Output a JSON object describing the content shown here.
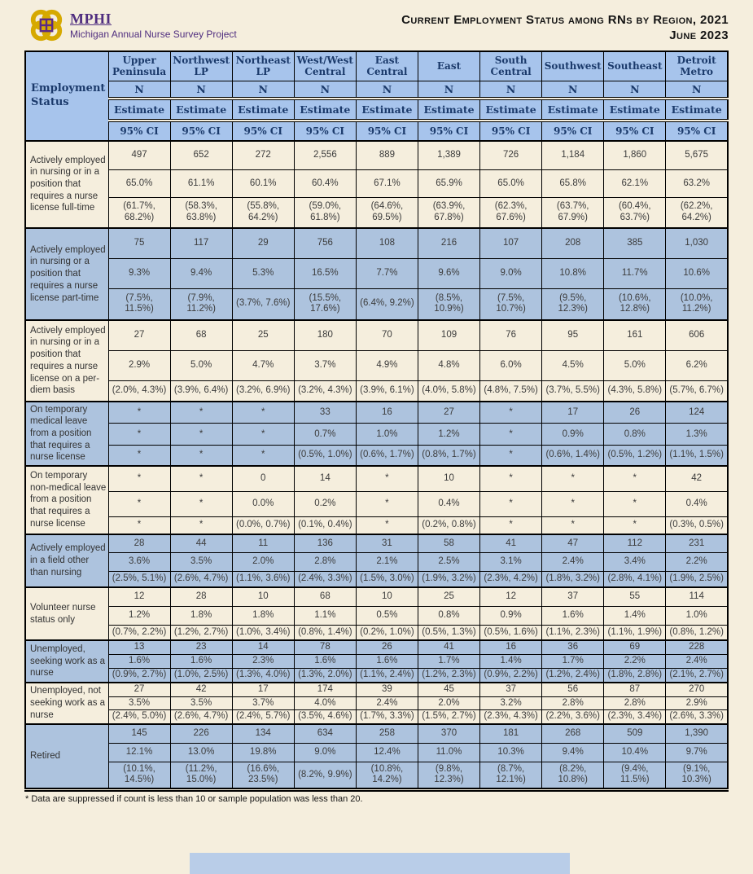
{
  "brand": {
    "name": "MPHI",
    "subtitle": "Michigan Annual Nurse Survey Project",
    "logo_icon": "mphi-knot-icon",
    "purple": "#4f2d7f",
    "gold": "#d6a900"
  },
  "title": {
    "line1": "Current Employment Status among RNs by Region, 2021",
    "line2": "June 2023"
  },
  "colors": {
    "page_background": "#f5eedd",
    "header_blue": "#a7c4ec",
    "row_blue": "#adc3de",
    "row_cream": "#f5eedd",
    "header_text_navy": "#1b3a6b"
  },
  "table": {
    "row_header_label": "Employment Status",
    "regions": [
      "Upper Peninsula",
      "Northwest LP",
      "Northeast LP",
      "West/West Central",
      "East Central",
      "East",
      "South Central",
      "Southwest",
      "Southeast",
      "Detroit Metro"
    ],
    "subheaders": [
      "N",
      "Estimate",
      "95% CI"
    ],
    "rows": [
      {
        "label": "Actively employed in nursing or in a position that requires a nurse license full-time",
        "shaded": false,
        "n": [
          "497",
          "652",
          "272",
          "2,556",
          "889",
          "1,389",
          "726",
          "1,184",
          "1,860",
          "5,675"
        ],
        "estimate": [
          "65.0%",
          "61.1%",
          "60.1%",
          "60.4%",
          "67.1%",
          "65.9%",
          "65.0%",
          "65.8%",
          "62.1%",
          "63.2%"
        ],
        "ci": [
          "(61.7%, 68.2%)",
          "(58.3%, 63.8%)",
          "(55.8%, 64.2%)",
          "(59.0%, 61.8%)",
          "(64.6%, 69.5%)",
          "(63.9%, 67.8%)",
          "(62.3%, 67.6%)",
          "(63.7%, 67.9%)",
          "(60.4%, 63.7%)",
          "(62.2%, 64.2%)"
        ]
      },
      {
        "label": "Actively employed in nursing or a position that requires a nurse license part-time",
        "shaded": true,
        "n": [
          "75",
          "117",
          "29",
          "756",
          "108",
          "216",
          "107",
          "208",
          "385",
          "1,030"
        ],
        "estimate": [
          "9.3%",
          "9.4%",
          "5.3%",
          "16.5%",
          "7.7%",
          "9.6%",
          "9.0%",
          "10.8%",
          "11.7%",
          "10.6%"
        ],
        "ci": [
          "(7.5%, 11.5%)",
          "(7.9%, 11.2%)",
          "(3.7%, 7.6%)",
          "(15.5%, 17.6%)",
          "(6.4%, 9.2%)",
          "(8.5%, 10.9%)",
          "(7.5%, 10.7%)",
          "(9.5%, 12.3%)",
          "(10.6%, 12.8%)",
          "(10.0%, 11.2%)"
        ]
      },
      {
        "label": "Actively employed in nursing or in a position that requires a nurse license on a per-diem basis",
        "shaded": false,
        "n": [
          "27",
          "68",
          "25",
          "180",
          "70",
          "109",
          "76",
          "95",
          "161",
          "606"
        ],
        "estimate": [
          "2.9%",
          "5.0%",
          "4.7%",
          "3.7%",
          "4.9%",
          "4.8%",
          "6.0%",
          "4.5%",
          "5.0%",
          "6.2%"
        ],
        "ci": [
          "(2.0%, 4.3%)",
          "(3.9%, 6.4%)",
          "(3.2%, 6.9%)",
          "(3.2%, 4.3%)",
          "(3.9%, 6.1%)",
          "(4.0%, 5.8%)",
          "(4.8%, 7.5%)",
          "(3.7%, 5.5%)",
          "(4.3%, 5.8%)",
          "(5.7%, 6.7%)"
        ]
      },
      {
        "label": "On temporary medical leave from a position that requires a nurse license",
        "shaded": true,
        "n": [
          "*",
          "*",
          "*",
          "33",
          "16",
          "27",
          "*",
          "17",
          "26",
          "124"
        ],
        "estimate": [
          "*",
          "*",
          "*",
          "0.7%",
          "1.0%",
          "1.2%",
          "*",
          "0.9%",
          "0.8%",
          "1.3%"
        ],
        "ci": [
          "*",
          "*",
          "*",
          "(0.5%, 1.0%)",
          "(0.6%, 1.7%)",
          "(0.8%, 1.7%)",
          "*",
          "(0.6%, 1.4%)",
          "(0.5%, 1.2%)",
          "(1.1%, 1.5%)"
        ]
      },
      {
        "label": "On temporary non-medical leave from a position that requires a nurse license",
        "shaded": false,
        "n": [
          "*",
          "*",
          "0",
          "14",
          "*",
          "10",
          "*",
          "*",
          "*",
          "42"
        ],
        "estimate": [
          "*",
          "*",
          "0.0%",
          "0.2%",
          "*",
          "0.4%",
          "*",
          "*",
          "*",
          "0.4%"
        ],
        "ci": [
          "*",
          "*",
          "(0.0%, 0.7%)",
          "(0.1%, 0.4%)",
          "*",
          "(0.2%, 0.8%)",
          "*",
          "*",
          "*",
          "(0.3%, 0.5%)"
        ]
      },
      {
        "label": "Actively employed in a field other than nursing",
        "shaded": true,
        "n": [
          "28",
          "44",
          "11",
          "136",
          "31",
          "58",
          "41",
          "47",
          "112",
          "231"
        ],
        "estimate": [
          "3.6%",
          "3.5%",
          "2.0%",
          "2.8%",
          "2.1%",
          "2.5%",
          "3.1%",
          "2.4%",
          "3.4%",
          "2.2%"
        ],
        "ci": [
          "(2.5%, 5.1%)",
          "(2.6%, 4.7%)",
          "(1.1%, 3.6%)",
          "(2.4%, 3.3%)",
          "(1.5%, 3.0%)",
          "(1.9%, 3.2%)",
          "(2.3%, 4.2%)",
          "(1.8%, 3.2%)",
          "(2.8%, 4.1%)",
          "(1.9%, 2.5%)"
        ]
      },
      {
        "label": "Volunteer nurse status only",
        "shaded": false,
        "n": [
          "12",
          "28",
          "10",
          "68",
          "10",
          "25",
          "12",
          "37",
          "55",
          "114"
        ],
        "estimate": [
          "1.2%",
          "1.8%",
          "1.8%",
          "1.1%",
          "0.5%",
          "0.8%",
          "0.9%",
          "1.6%",
          "1.4%",
          "1.0%"
        ],
        "ci": [
          "(0.7%, 2.2%)",
          "(1.2%, 2.7%)",
          "(1.0%, 3.4%)",
          "(0.8%, 1.4%)",
          "(0.2%, 1.0%)",
          "(0.5%, 1.3%)",
          "(0.5%, 1.6%)",
          "(1.1%, 2.3%)",
          "(1.1%, 1.9%)",
          "(0.8%, 1.2%)"
        ]
      },
      {
        "label": "Unemployed, seeking work as a nurse",
        "shaded": true,
        "n": [
          "13",
          "23",
          "14",
          "78",
          "26",
          "41",
          "16",
          "36",
          "69",
          "228"
        ],
        "estimate": [
          "1.6%",
          "1.6%",
          "2.3%",
          "1.6%",
          "1.6%",
          "1.7%",
          "1.4%",
          "1.7%",
          "2.2%",
          "2.4%"
        ],
        "ci": [
          "(0.9%, 2.7%)",
          "(1.0%, 2.5%)",
          "(1.3%, 4.0%)",
          "(1.3%, 2.0%)",
          "(1.1%, 2.4%)",
          "(1.2%, 2.3%)",
          "(0.9%, 2.2%)",
          "(1.2%, 2.4%)",
          "(1.8%, 2.8%)",
          "(2.1%, 2.7%)"
        ]
      },
      {
        "label": "Unemployed, not seeking work as a nurse",
        "shaded": false,
        "n": [
          "27",
          "42",
          "17",
          "174",
          "39",
          "45",
          "37",
          "56",
          "87",
          "270"
        ],
        "estimate": [
          "3.5%",
          "3.5%",
          "3.7%",
          "4.0%",
          "2.4%",
          "2.0%",
          "3.2%",
          "2.8%",
          "2.8%",
          "2.9%"
        ],
        "ci": [
          "(2.4%, 5.0%)",
          "(2.6%, 4.7%)",
          "(2.4%, 5.7%)",
          "(3.5%, 4.6%)",
          "(1.7%, 3.3%)",
          "(1.5%, 2.7%)",
          "(2.3%, 4.3%)",
          "(2.2%, 3.6%)",
          "(2.3%, 3.4%)",
          "(2.6%, 3.3%)"
        ]
      },
      {
        "label": "Retired",
        "shaded": true,
        "n": [
          "145",
          "226",
          "134",
          "634",
          "258",
          "370",
          "181",
          "268",
          "509",
          "1,390"
        ],
        "estimate": [
          "12.1%",
          "13.0%",
          "19.8%",
          "9.0%",
          "12.4%",
          "11.0%",
          "10.3%",
          "9.4%",
          "10.4%",
          "9.7%"
        ],
        "ci": [
          "(10.1%, 14.5%)",
          "(11.2%, 15.0%)",
          "(16.6%, 23.5%)",
          "(8.2%, 9.9%)",
          "(10.8%, 14.2%)",
          "(9.8%, 12.3%)",
          "(8.7%, 12.1%)",
          "(8.2%, 10.8%)",
          "(9.4%, 11.5%)",
          "(9.1%, 10.3%)"
        ]
      }
    ]
  },
  "footnote": "* Data are suppressed if count is less than 10 or sample population was less than 20."
}
